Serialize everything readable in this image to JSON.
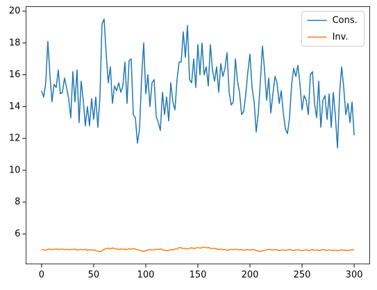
{
  "chart_data": {
    "type": "line",
    "x": [
      0,
      2,
      4,
      6,
      8,
      10,
      12,
      14,
      16,
      18,
      20,
      22,
      24,
      26,
      28,
      30,
      32,
      34,
      36,
      38,
      40,
      42,
      44,
      46,
      48,
      50,
      52,
      54,
      56,
      58,
      60,
      62,
      64,
      66,
      68,
      70,
      72,
      74,
      76,
      78,
      80,
      82,
      84,
      86,
      88,
      90,
      92,
      94,
      96,
      98,
      100,
      102,
      104,
      106,
      108,
      110,
      112,
      114,
      116,
      118,
      120,
      122,
      124,
      126,
      128,
      130,
      132,
      134,
      136,
      138,
      140,
      142,
      144,
      146,
      148,
      150,
      152,
      154,
      156,
      158,
      160,
      162,
      164,
      166,
      168,
      170,
      172,
      174,
      176,
      178,
      180,
      182,
      184,
      186,
      188,
      190,
      192,
      194,
      196,
      198,
      200,
      202,
      204,
      206,
      208,
      210,
      212,
      214,
      216,
      218,
      220,
      222,
      224,
      226,
      228,
      230,
      232,
      234,
      236,
      238,
      240,
      242,
      244,
      246,
      248,
      250,
      252,
      254,
      256,
      258,
      260,
      262,
      264,
      266,
      268,
      270,
      272,
      274,
      276,
      278,
      280,
      282,
      284,
      286,
      288,
      290,
      292,
      294,
      296,
      298,
      300
    ],
    "series": [
      {
        "name": "Cons.",
        "color": "#1f77b4",
        "values": [
          15.0,
          14.6,
          15.5,
          18.1,
          16.0,
          14.3,
          15.4,
          15.2,
          16.3,
          14.8,
          14.9,
          15.8,
          15.2,
          14.5,
          13.3,
          16.2,
          14.3,
          16.3,
          13.0,
          15.6,
          14.4,
          12.8,
          14.0,
          12.8,
          14.5,
          13.2,
          14.6,
          12.7,
          14.6,
          19.2,
          19.5,
          17.3,
          15.5,
          16.5,
          14.2,
          15.3,
          15.0,
          15.5,
          14.9,
          15.3,
          16.8,
          14.2,
          16.9,
          17.0,
          13.5,
          13.3,
          11.7,
          12.6,
          15.8,
          18.0,
          14.8,
          16.0,
          14.0,
          15.5,
          15.7,
          13.4,
          13.0,
          12.5,
          14.9,
          13.5,
          14.6,
          13.1,
          15.5,
          14.3,
          13.8,
          15.7,
          16.8,
          16.8,
          18.7,
          17.1,
          19.1,
          15.7,
          15.5,
          17.0,
          15.2,
          17.9,
          16.0,
          18.0,
          16.0,
          16.5,
          15.3,
          17.9,
          16.3,
          15.6,
          16.5,
          14.9,
          16.7,
          15.9,
          16.4,
          17.4,
          14.9,
          14.1,
          14.3,
          17.0,
          15.6,
          14.9,
          13.5,
          13.7,
          14.8,
          16.2,
          17.3,
          15.2,
          14.3,
          12.4,
          13.6,
          15.6,
          17.8,
          16.3,
          14.4,
          15.8,
          13.6,
          14.8,
          15.9,
          15.5,
          14.2,
          15.0,
          13.6,
          12.6,
          12.3,
          13.3,
          15.4,
          16.4,
          15.9,
          16.6,
          15.4,
          13.8,
          14.7,
          14.4,
          13.5,
          16.0,
          16.2,
          14.2,
          13.3,
          15.6,
          12.7,
          14.4,
          14.7,
          13.2,
          14.8,
          12.7,
          14.9,
          13.4,
          11.4,
          14.8,
          16.5,
          15.2,
          13.5,
          14.2,
          13.0,
          14.3,
          12.2
        ]
      },
      {
        "name": "Inv.",
        "color": "#ff7f0e",
        "values": [
          5.02,
          5.0,
          4.97,
          5.03,
          5.05,
          5.0,
          5.04,
          5.06,
          5.02,
          5.03,
          5.05,
          5.01,
          5.04,
          4.99,
          5.03,
          5.02,
          5.05,
          4.98,
          5.01,
          5.03,
          5.0,
          5.04,
          4.97,
          5.01,
          4.98,
          5.0,
          4.95,
          4.92,
          4.88,
          4.95,
          5.03,
          5.08,
          5.1,
          5.06,
          5.12,
          5.08,
          5.05,
          5.02,
          5.06,
          5.03,
          5.05,
          5.02,
          5.07,
          5.04,
          5.08,
          5.05,
          5.01,
          4.97,
          4.93,
          4.9,
          4.95,
          4.99,
          5.03,
          5.0,
          4.98,
          5.04,
          5.02,
          5.06,
          5.01,
          4.97,
          4.94,
          4.97,
          5.02,
          4.99,
          5.06,
          5.05,
          5.15,
          5.12,
          5.08,
          5.1,
          5.05,
          5.09,
          5.13,
          5.08,
          5.11,
          5.15,
          5.1,
          5.14,
          5.18,
          5.12,
          5.15,
          5.1,
          5.07,
          5.1,
          5.06,
          5.02,
          5.05,
          5.0,
          5.03,
          4.96,
          5.0,
          5.04,
          5.01,
          5.05,
          5.02,
          4.99,
          5.03,
          4.97,
          5.0,
          5.02,
          4.98,
          5.03,
          5.0,
          4.96,
          4.93,
          4.9,
          4.94,
          4.97,
          5.0,
          5.03,
          5.01,
          4.98,
          5.02,
          4.99,
          4.95,
          4.97,
          5.0,
          4.96,
          4.99,
          5.02,
          4.98,
          4.95,
          4.99,
          5.01,
          4.97,
          4.94,
          4.98,
          5.0,
          4.96,
          4.99,
          5.01,
          4.97,
          5.0,
          4.95,
          4.98,
          5.02,
          4.99,
          4.96,
          5.0,
          4.97,
          4.95,
          4.98,
          4.94,
          4.97,
          5.0,
          4.96,
          4.99,
          4.95,
          4.98,
          5.01,
          4.98
        ]
      }
    ],
    "xlim": [
      -15,
      315
    ],
    "xticks": [
      0,
      50,
      100,
      150,
      200,
      250,
      300
    ],
    "ylim": [
      4.11,
      20.29
    ],
    "yticks": [
      6,
      8,
      10,
      12,
      14,
      16,
      18,
      20
    ],
    "grid": false,
    "legend": "upper right"
  }
}
